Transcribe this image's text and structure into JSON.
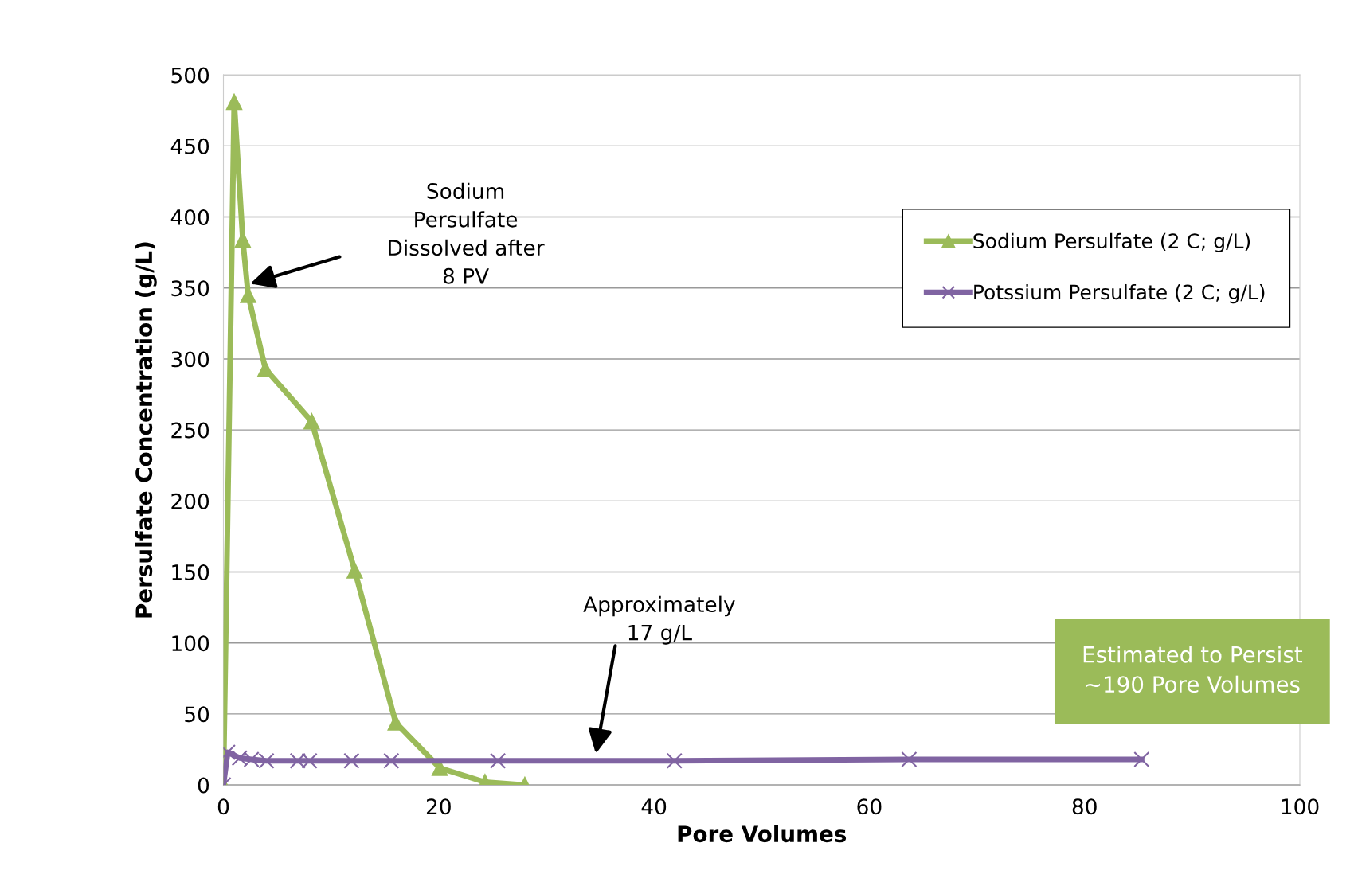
{
  "chart_data": {
    "type": "line",
    "xlabel": "Pore Volumes",
    "ylabel": "Persulfate Concentration (g/L)",
    "xlim": [
      0,
      100
    ],
    "xticks": [
      0,
      20,
      40,
      60,
      80,
      100
    ],
    "ylim": [
      0,
      500
    ],
    "yticks": [
      0,
      50,
      100,
      150,
      200,
      250,
      300,
      350,
      400,
      450,
      500
    ],
    "grid": "y",
    "legend": "top right",
    "line_style": "solid",
    "series": [
      {
        "name": "Sodium Persulfate (2 C; g/L)",
        "color": "#9bbb59",
        "marker": "triangle",
        "x": [
          0,
          1.0,
          1.8,
          2.3,
          3.9,
          8.2,
          12.2,
          16.0,
          20.1,
          24.3,
          28.0
        ],
        "values": [
          0,
          481,
          384,
          345,
          293,
          256,
          151,
          44,
          12,
          2,
          0
        ]
      },
      {
        "name": "Potssium Persulfate (2 C; g/L)",
        "color": "#8064a2",
        "marker": "cross",
        "x": [
          0,
          0.4,
          1.5,
          2.6,
          4.0,
          6.9,
          8.0,
          11.9,
          15.6,
          25.5,
          41.9,
          63.7,
          85.3
        ],
        "values": [
          0,
          23,
          19,
          18,
          17,
          17,
          17,
          17,
          17,
          17,
          17,
          18,
          18
        ]
      }
    ],
    "annotations": [
      "Sodium\nPersulfate\nDissolved after\n8 PV",
      "Approximately\n17 g/L",
      "Estimated to Persist\n~190 Pore Volumes"
    ]
  }
}
